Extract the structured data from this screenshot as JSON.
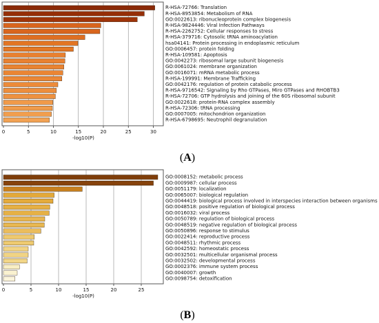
{
  "chart_data": [
    {
      "type": "bar",
      "orientation": "horizontal",
      "panel_label": "A",
      "xlabel": "-log10(P)",
      "xlim": [
        0,
        32
      ],
      "xticks": [
        0,
        5,
        10,
        15,
        20,
        25,
        30
      ],
      "grid": true,
      "categories": [
        "R-HSA-72766: Translation",
        "R-HSA-8953854: Metabolism of RNA",
        "GO:0022613: ribonucleoprotein complex biogenesis",
        "R-HSA-9824446: Viral Infection Pathways",
        "R-HSA-2262752: Cellular responses to stress",
        "R-HSA-379716: Cytosolic tRNA aminoacylation",
        "hsa04141: Protein processing in endoplasmic reticulum",
        "GO:0006457: protein folding",
        "R-HSA-109581: Apoptosis",
        "GO:0042273: ribosomal large subunit biogenesis",
        "GO:0061024: membrane organization",
        "GO:0016071: mRNA metabolic process",
        "R-HSA-199991: Membrane Trafficking",
        "GO:0042176: regulation of protein catabolic process",
        "R-HSA-9716542: Signaling by Rho GTPases, Miro GTPases and RHOBTB3",
        "R-HSA-72706: GTP hydrolysis and joining of the 60S ribosomal subunit",
        "GO:0022618: protein-RNA complex assembly",
        "R-HSA-72306: tRNA processing",
        "GO:0007005: mitochondrion organization",
        "R-HSA-6798695: Neutrophil degranulation"
      ],
      "values": [
        30.3,
        28.2,
        26.8,
        19.5,
        19.3,
        16.3,
        14.9,
        14.0,
        12.4,
        12.3,
        12.1,
        11.9,
        11.7,
        10.9,
        10.6,
        10.4,
        9.9,
        9.8,
        9.6,
        9.2
      ],
      "colors": [
        "#8b2a07",
        "#952f08",
        "#9e3409",
        "#d8641d",
        "#d9661e",
        "#df6f22",
        "#e27524",
        "#e47826",
        "#e88030",
        "#e88131",
        "#e98332",
        "#ea8534",
        "#eb8736",
        "#ec8b3a",
        "#ed8e3d",
        "#ee9140",
        "#f09a49",
        "#f09c4b",
        "#f19e4e",
        "#f2a253"
      ]
    },
    {
      "type": "bar",
      "orientation": "horizontal",
      "panel_label": "B",
      "xlabel": "-log10(P)",
      "xlim": [
        0,
        29
      ],
      "xticks": [
        0,
        5,
        10,
        15,
        20,
        25
      ],
      "grid": true,
      "categories": [
        "GO:0008152: metabolic process",
        "GO:0009987: cellular process",
        "GO:0051179: localization",
        "GO:0065007: biological regulation",
        "GO:0044419: biological process involved in interspecies interaction between organisms",
        "GO:0048518: positive regulation of biological process",
        "GO:0016032: viral process",
        "GO:0050789: regulation of biological process",
        "GO:0048519: negative regulation of biological process",
        "GO:0050896: response to stimulus",
        "GO:0022414: reproductive process",
        "GO:0048511: rhythmic process",
        "GO:0042592: homeostatic process",
        "GO:0032501: multicellular organismal process",
        "GO:0032502: developmental process",
        "GO:0002376: immune system process",
        "GO:0040007: growth",
        "GO:0098754: detoxification"
      ],
      "values": [
        28.0,
        27.2,
        14.3,
        9.2,
        9.0,
        8.4,
        8.3,
        7.5,
        7.4,
        6.8,
        5.6,
        5.5,
        4.5,
        4.5,
        4.3,
        2.9,
        2.5,
        2.1
      ],
      "colors": [
        "#7f3e0a",
        "#87430c",
        "#c8801e",
        "#e3a93a",
        "#e4ab3c",
        "#e6b044",
        "#e6b146",
        "#e8b650",
        "#e8b752",
        "#ebbd5c",
        "#eec96e",
        "#eeca70",
        "#f1d484",
        "#f1d484",
        "#f2d688",
        "#f8eec4",
        "#faf2d0",
        "#fbf5dc"
      ]
    }
  ],
  "captions": {
    "a_open": "(",
    "a_letter": "A",
    "a_close": ")",
    "b_open": "(",
    "b_letter": "B",
    "b_close": ")"
  }
}
